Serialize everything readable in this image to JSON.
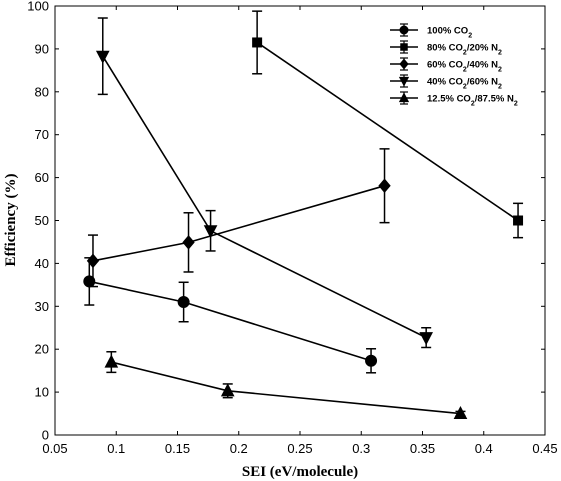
{
  "chart_data": {
    "type": "line",
    "xlabel": "SEI (eV/molecule)",
    "ylabel": "Efficiency (%)",
    "xlim": [
      0.05,
      0.45
    ],
    "ylim": [
      0,
      100
    ],
    "xticks": [
      "0.05",
      "0.1",
      "0.15",
      "0.2",
      "0.25",
      "0.3",
      "0.35",
      "0.4",
      "0.45"
    ],
    "yticks": [
      "0",
      "10",
      "20",
      "30",
      "40",
      "50",
      "60",
      "70",
      "80",
      "90",
      "100"
    ],
    "legend_position": "top-right",
    "color": "#000000",
    "series": [
      {
        "name": "100% CO",
        "name_sub": "2",
        "name_rest": "",
        "marker": "circle",
        "x": [
          0.078,
          0.155,
          0.308
        ],
        "y": [
          35.8,
          31.0,
          17.3
        ],
        "err": [
          5.5,
          4.6,
          2.8
        ]
      },
      {
        "name": "80% CO",
        "name_sub": "2",
        "name_rest": "/20% N",
        "name_sub2": "2",
        "marker": "square",
        "x": [
          0.215,
          0.428
        ],
        "y": [
          91.5,
          50.0
        ],
        "err": [
          7.3,
          4.0
        ]
      },
      {
        "name": "60% CO",
        "name_sub": "2",
        "name_rest": "/40% N",
        "name_sub2": "2",
        "marker": "diamond",
        "x": [
          0.081,
          0.159,
          0.319
        ],
        "y": [
          40.6,
          44.9,
          58.1
        ],
        "err": [
          6.0,
          6.9,
          8.6
        ]
      },
      {
        "name": "40% CO",
        "name_sub": "2",
        "name_rest": "/60% N",
        "name_sub2": "2",
        "marker": "triangle-down",
        "x": [
          0.089,
          0.177,
          0.353
        ],
        "y": [
          88.3,
          47.6,
          22.7
        ],
        "err": [
          8.9,
          4.7,
          2.3
        ]
      },
      {
        "name": "12.5% CO",
        "name_sub": "2",
        "name_rest": "/87.5% N",
        "name_sub2": "2",
        "marker": "triangle-up",
        "x": [
          0.096,
          0.191,
          0.381
        ],
        "y": [
          17.0,
          10.3,
          5.0
        ],
        "err": [
          2.4,
          1.6,
          0.5
        ]
      }
    ]
  }
}
